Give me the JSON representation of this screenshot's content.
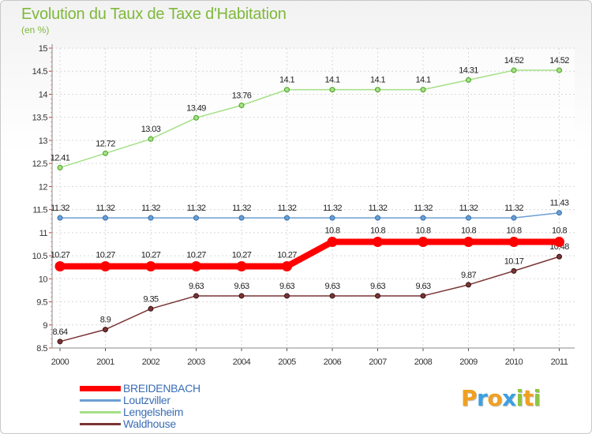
{
  "title": "Evolution du Taux de Taxe d'Habitation",
  "unit": "(en %)",
  "logo": {
    "letters": [
      "P",
      "r",
      "o",
      "x",
      "i",
      "t",
      "i"
    ],
    "colors": [
      "#f0a020",
      "#3aa0e0",
      "#f0a020",
      "#3aa0e0",
      "#8cc63e",
      "#f0a020",
      "#8cc63e"
    ]
  },
  "chart_data": {
    "type": "line",
    "title": "Evolution du Taux de Taxe d'Habitation",
    "ylabel": "(en %)",
    "xlabel": "",
    "ylim": [
      8.5,
      15
    ],
    "yticks": [
      "8.5",
      "9",
      "9.5",
      "10",
      "10.5",
      "11",
      "11.5",
      "12",
      "12.5",
      "13",
      "13.5",
      "14",
      "14.5",
      "15"
    ],
    "categories": [
      "2000",
      "2001",
      "2002",
      "2003",
      "2004",
      "2005",
      "2006",
      "2007",
      "2008",
      "2009",
      "2010",
      "2011"
    ],
    "legend_position": "bottom-left",
    "series": [
      {
        "name": "BREIDENBACH",
        "color": "#ff0000",
        "values": [
          10.27,
          10.27,
          10.27,
          10.27,
          10.27,
          10.27,
          10.8,
          10.8,
          10.8,
          10.8,
          10.8,
          10.8
        ],
        "labels": [
          "10.27",
          "10.27",
          "10.27",
          "10.27",
          "10.27",
          "10.27",
          "10.8",
          "10.8",
          "10.8",
          "10.8",
          "10.8",
          "10.8"
        ]
      },
      {
        "name": "Loutzviller",
        "color": "#6d9ed3",
        "values": [
          11.32,
          11.32,
          11.32,
          11.32,
          11.32,
          11.32,
          11.32,
          11.32,
          11.32,
          11.32,
          11.32,
          11.43
        ],
        "labels": [
          "11.32",
          "11.32",
          "11.32",
          "11.32",
          "11.32",
          "11.32",
          "11.32",
          "11.32",
          "11.32",
          "11.32",
          "11.32",
          "11.43"
        ]
      },
      {
        "name": "Lengelsheim",
        "color": "#a4e086",
        "values": [
          12.41,
          12.72,
          13.03,
          13.49,
          13.76,
          14.1,
          14.1,
          14.1,
          14.1,
          14.31,
          14.52,
          14.52
        ],
        "labels": [
          "12.41",
          "12.72",
          "13.03",
          "13.49",
          "13.76",
          "14.1",
          "14.1",
          "14.1",
          "14.1",
          "14.31",
          "14.52",
          "14.52"
        ]
      },
      {
        "name": "Waldhouse",
        "color": "#7a3535",
        "values": [
          8.64,
          8.9,
          9.35,
          9.63,
          9.63,
          9.63,
          9.63,
          9.63,
          9.63,
          9.87,
          10.17,
          10.48
        ],
        "labels": [
          "8.64",
          "8.9",
          "9.35",
          "9.63",
          "9.63",
          "9.63",
          "9.63",
          "9.63",
          "9.63",
          "9.87",
          "10.17",
          "10.48"
        ]
      }
    ]
  }
}
